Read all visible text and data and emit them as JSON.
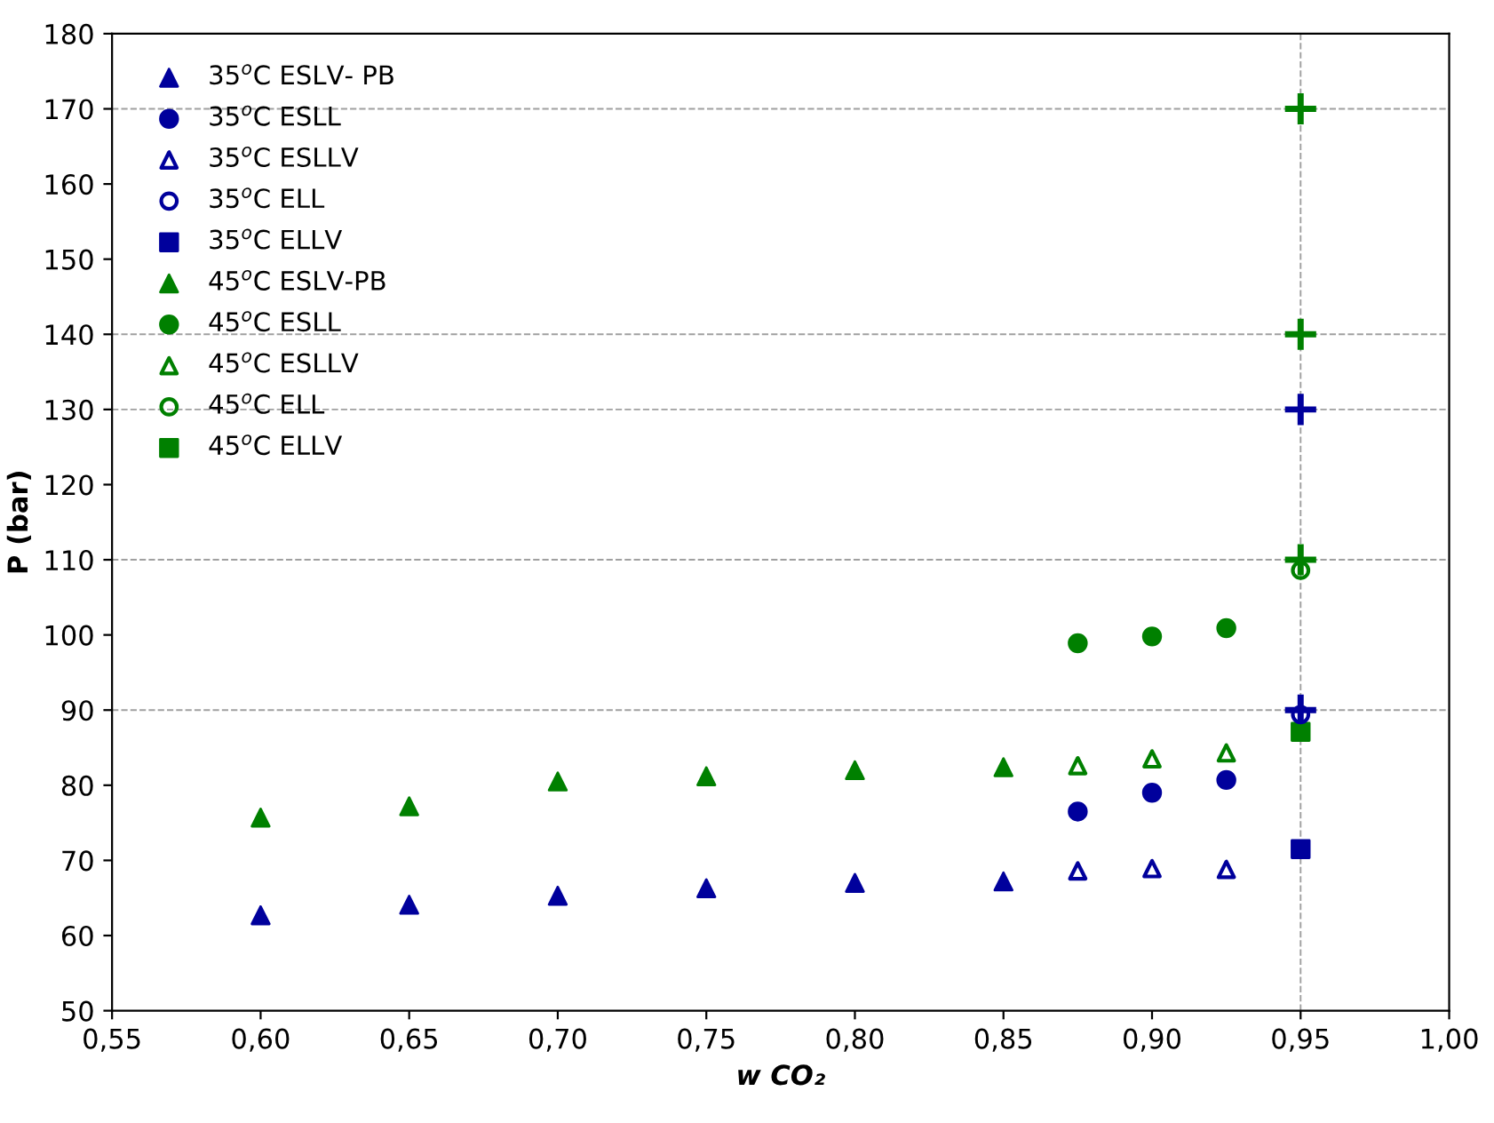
{
  "chart_data": {
    "type": "scatter",
    "xlabel": "w CO₂",
    "ylabel": "P (bar)",
    "xlim": [
      0.55,
      1.0
    ],
    "ylim": [
      50,
      180
    ],
    "xticks": [
      {
        "value": 0.55,
        "label": "0,55"
      },
      {
        "value": 0.6,
        "label": "0,60"
      },
      {
        "value": 0.65,
        "label": "0,65"
      },
      {
        "value": 0.7,
        "label": "0,70"
      },
      {
        "value": 0.75,
        "label": "0,75"
      },
      {
        "value": 0.8,
        "label": "0,80"
      },
      {
        "value": 0.85,
        "label": "0,85"
      },
      {
        "value": 0.9,
        "label": "0,90"
      },
      {
        "value": 0.95,
        "label": "0,95"
      },
      {
        "value": 1.0,
        "label": "1,00"
      }
    ],
    "yticks": [
      50,
      60,
      70,
      80,
      90,
      100,
      110,
      120,
      130,
      140,
      150,
      160,
      170,
      180
    ],
    "grid": false,
    "legend": "top left",
    "ref_lines": [
      {
        "axis": "y",
        "value": 90,
        "color": "#a0a0a0",
        "line_style": "dashed"
      },
      {
        "axis": "y",
        "value": 110,
        "color": "#a0a0a0",
        "line_style": "dashed"
      },
      {
        "axis": "y",
        "value": 130,
        "color": "#a0a0a0",
        "line_style": "dashed"
      },
      {
        "axis": "y",
        "value": 140,
        "color": "#a0a0a0",
        "line_style": "dashed"
      },
      {
        "axis": "y",
        "value": 170,
        "color": "#a0a0a0",
        "line_style": "dashed"
      },
      {
        "axis": "x",
        "value": 0.95,
        "color": "#a0a0a0",
        "line_style": "dashed"
      }
    ],
    "series": [
      {
        "name": "35$^{o}$C ESLV- PB",
        "color": "#00009c",
        "marker": "triangle",
        "x": [
          0.6,
          0.65,
          0.7,
          0.75,
          0.8,
          0.85
        ],
        "values": [
          62.7,
          64.1,
          65.3,
          66.3,
          67.0,
          67.2
        ]
      },
      {
        "name": "35$^{o}$C ESLL",
        "color": "#00009c",
        "marker": "circle",
        "x": [
          0.875,
          0.9,
          0.925
        ],
        "values": [
          76.5,
          79.0,
          80.7
        ]
      },
      {
        "name": "35$^{o}$C ESLLV",
        "color": "#00009c",
        "marker": "triangle-open",
        "x": [
          0.875,
          0.9,
          0.925
        ],
        "values": [
          68.6,
          68.9,
          68.8
        ]
      },
      {
        "name": "35$^{o}$C ELL",
        "color": "#00009c",
        "marker": "circle-open",
        "x": [
          0.95
        ],
        "values": [
          89.4
        ]
      },
      {
        "name": "35$^{o}$C ELLV",
        "color": "#00009c",
        "marker": "square",
        "x": [
          0.95
        ],
        "values": [
          71.5
        ]
      },
      {
        "name": "45$^{o}$C ESLV-PB",
        "color": "#008000",
        "marker": "triangle",
        "x": [
          0.6,
          0.65,
          0.7,
          0.75,
          0.8,
          0.85
        ],
        "values": [
          75.7,
          77.2,
          80.5,
          81.2,
          82.0,
          82.4
        ]
      },
      {
        "name": "45$^{o}$C ESLL",
        "color": "#008000",
        "marker": "circle",
        "x": [
          0.875,
          0.9,
          0.925
        ],
        "values": [
          98.9,
          99.8,
          100.9
        ]
      },
      {
        "name": "45$^{o}$C ESLLV",
        "color": "#008000",
        "marker": "triangle-open",
        "x": [
          0.875,
          0.9,
          0.925
        ],
        "values": [
          82.6,
          83.5,
          84.3
        ]
      },
      {
        "name": "45$^{o}$C ELL",
        "color": "#008000",
        "marker": "circle-open",
        "x": [
          0.95
        ],
        "values": [
          108.6
        ]
      },
      {
        "name": "45$^{o}$C ELLV",
        "color": "#008000",
        "marker": "square",
        "x": [
          0.95
        ],
        "values": [
          87.1
        ]
      },
      {
        "color": "#00009c",
        "marker": "cross",
        "x": [
          0.95,
          0.95
        ],
        "values": [
          90,
          130
        ]
      },
      {
        "color": "#008000",
        "marker": "cross",
        "x": [
          0.95,
          0.95,
          0.95
        ],
        "values": [
          110,
          140,
          170
        ]
      }
    ]
  }
}
